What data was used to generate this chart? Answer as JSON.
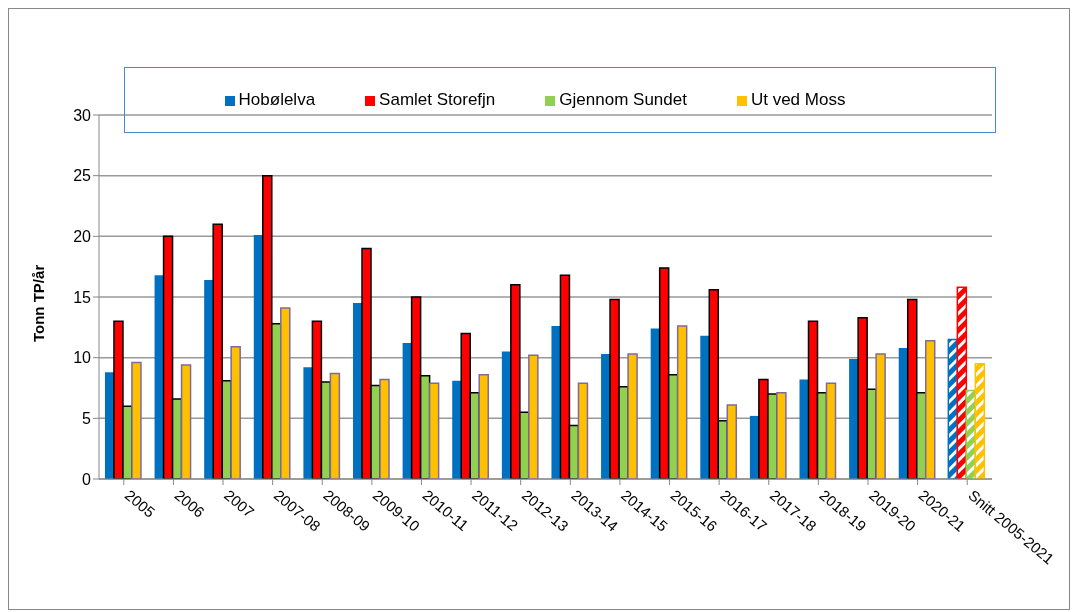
{
  "chart_data": {
    "type": "bar",
    "ylabel": "Tonn TP/år",
    "categories": [
      "2005",
      "2006",
      "2007",
      "2007-08",
      "2008-09",
      "2009-10",
      "2010-11",
      "2011-12",
      "2012-13",
      "2013-14",
      "2014-15",
      "2015-16",
      "2016-17",
      "2017-18",
      "2018-19",
      "2019-20",
      "2020-21",
      "Snitt 2005-2021"
    ],
    "series": [
      {
        "name": "Hobølelva",
        "color": "#0070c0",
        "values": [
          8.8,
          16.8,
          16.4,
          20.1,
          9.2,
          14.5,
          11.2,
          8.1,
          10.5,
          12.6,
          10.3,
          12.4,
          11.8,
          5.2,
          8.2,
          9.9,
          10.8,
          11.5
        ]
      },
      {
        "name": "Samlet Storefjn",
        "color": "#ff0000",
        "values": [
          13,
          20,
          21,
          25,
          13,
          19,
          15,
          12,
          16,
          16.8,
          14.8,
          17.4,
          15.6,
          8.2,
          13,
          13.3,
          14.8,
          15.8
        ]
      },
      {
        "name": "Gjennom Sundet",
        "color": "#92d050",
        "values": [
          6,
          6.6,
          8.1,
          12.8,
          8,
          7.7,
          8.5,
          7.1,
          5.5,
          4.4,
          7.6,
          8.6,
          4.8,
          7,
          7.1,
          7.4,
          7.1,
          7.3
        ]
      },
      {
        "name": "Ut ved Moss",
        "color": "#ffc000",
        "values": [
          9.6,
          9.4,
          10.9,
          14.1,
          8.7,
          8.2,
          7.9,
          8.6,
          10.2,
          7.9,
          10.3,
          12.6,
          6.1,
          7.1,
          7.9,
          10.3,
          11.4,
          9.5
        ]
      }
    ],
    "ylim": [
      0,
      30
    ],
    "yticks": [
      0,
      5,
      10,
      15,
      20,
      25,
      30
    ],
    "grid": "y",
    "legend": "top"
  }
}
